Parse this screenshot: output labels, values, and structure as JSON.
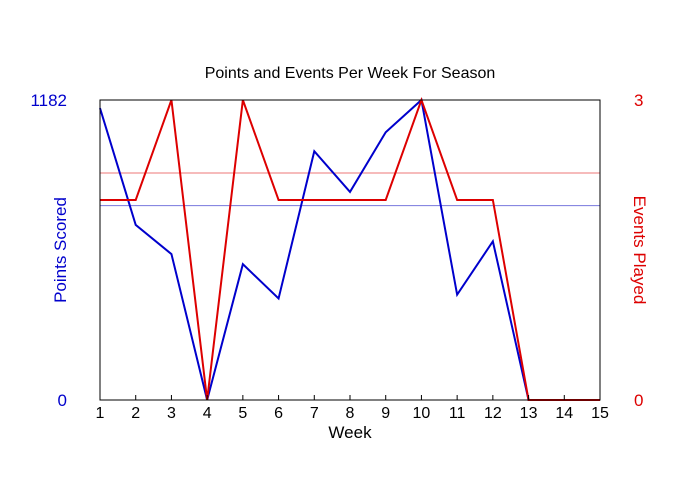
{
  "chart_data": {
    "type": "line",
    "title": "Points and Events Per Week For Season",
    "xlabel": "Week",
    "ylabel_left": "Points Scored",
    "ylabel_right": "Events Played",
    "x": [
      1,
      2,
      3,
      4,
      5,
      6,
      7,
      8,
      9,
      10,
      11,
      12,
      13,
      14,
      15
    ],
    "x_tick_labels": [
      "1",
      "2",
      "3",
      "4",
      "5",
      "6",
      "7",
      "8",
      "9",
      "10",
      "11",
      "12",
      "13",
      "14",
      "15"
    ],
    "xlim": [
      1,
      15
    ],
    "ylim_left": [
      0,
      1182
    ],
    "ylim_right": [
      0,
      3
    ],
    "y_left_tick_labels": [
      "0",
      "1182"
    ],
    "y_right_tick_labels": [
      "0",
      "3"
    ],
    "series": [
      {
        "axis": "left",
        "color": "#0000cc",
        "values": [
          1150,
          690,
          575,
          0,
          535,
          400,
          980,
          820,
          1055,
          1182,
          415,
          625,
          0,
          0,
          0
        ]
      },
      {
        "axis": "right",
        "color": "#dd0000",
        "values": [
          2,
          2,
          3,
          0,
          3,
          2,
          2,
          2,
          2,
          3,
          2,
          2,
          0,
          0,
          0
        ]
      }
    ],
    "reference_lines": [
      {
        "axis": "left",
        "value": 766,
        "color": "#7777dd"
      },
      {
        "axis": "right",
        "value": 2.27,
        "color": "#ee7777"
      }
    ],
    "grid": false,
    "legend": "none"
  }
}
